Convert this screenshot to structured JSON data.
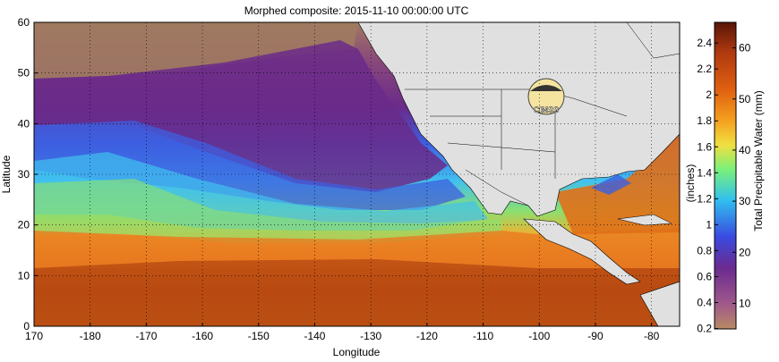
{
  "title": "Morphed composite: 2015-11-10 00:00:00 UTC",
  "map": {
    "xlabel": "Longitude",
    "ylabel": "Latitude",
    "lon_ticks": [
      "170",
      "-180",
      "-170",
      "-160",
      "-150",
      "-140",
      "-130",
      "-120",
      "-110",
      "-100",
      "-90",
      "-80"
    ],
    "lat_ticks": [
      "0",
      "10",
      "20",
      "30",
      "40",
      "50",
      "60"
    ],
    "lon_range": [
      170,
      285
    ],
    "lat_range": [
      0,
      60
    ],
    "grid": "dotted",
    "logo_text": "CIMSS"
  },
  "colorbar": {
    "left_label": "(inches)",
    "right_label": "Total Precipitable Water (mm)",
    "inch_ticks": [
      "0.2",
      "0.4",
      "0.6",
      "0.8",
      "1",
      "1.2",
      "1.4",
      "1.6",
      "1.8",
      "2",
      "2.2",
      "2.4"
    ],
    "mm_ticks": [
      "10",
      "20",
      "30",
      "40",
      "50",
      "60"
    ],
    "range_mm": [
      5,
      65
    ],
    "colors": [
      "#b88a64",
      "#a05a8a",
      "#6a2a90",
      "#3a4ae0",
      "#30c0f0",
      "#7af07a",
      "#f0e040",
      "#f4a020",
      "#e06010",
      "#b03a10",
      "#5a1508"
    ]
  },
  "colors": {
    "land": "#e0e0e0",
    "land_border": "#000000",
    "north_dry": "#a07a60",
    "purple": "#6a2a8a",
    "blue": "#3d5fe0",
    "cyan": "#40c0f0",
    "green": "#8ae070",
    "orange": "#e87a20",
    "deep_orange": "#b84a12"
  }
}
